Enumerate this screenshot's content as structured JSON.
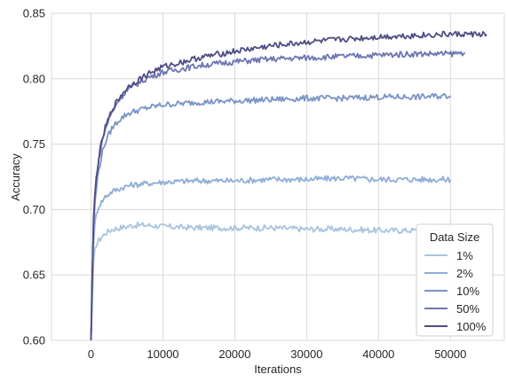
{
  "chart_data": {
    "type": "line",
    "xlabel": "Iterations",
    "ylabel": "Accuracy",
    "xlim": [
      -5500,
      57500
    ],
    "ylim": [
      0.6,
      0.85
    ],
    "xticks": [
      0,
      10000,
      20000,
      30000,
      40000,
      50000
    ],
    "xtick_labels": [
      "0",
      "10000",
      "20000",
      "30000",
      "40000",
      "50000"
    ],
    "yticks": [
      0.6,
      0.65,
      0.7,
      0.75,
      0.8,
      0.85
    ],
    "ytick_labels": [
      "0.60",
      "0.65",
      "0.70",
      "0.75",
      "0.80",
      "0.85"
    ],
    "grid": true,
    "legend": {
      "title": "Data Size",
      "placement": "lower-right"
    },
    "series": [
      {
        "name": "1%",
        "color": "#a9c4de",
        "x": [
          0,
          300,
          600,
          1000,
          1500,
          2000,
          3000,
          4000,
          5000,
          6000,
          8000,
          10000,
          15000,
          20000,
          25000,
          30000,
          35000,
          40000,
          45000,
          50000
        ],
        "y": [
          0.6,
          0.655,
          0.672,
          0.676,
          0.679,
          0.682,
          0.685,
          0.686,
          0.687,
          0.688,
          0.688,
          0.687,
          0.686,
          0.686,
          0.686,
          0.685,
          0.685,
          0.684,
          0.684,
          0.684
        ]
      },
      {
        "name": "2%",
        "color": "#8fadd6",
        "x": [
          0,
          300,
          600,
          1000,
          1500,
          2000,
          3000,
          4000,
          5000,
          6000,
          8000,
          10000,
          15000,
          20000,
          25000,
          30000,
          35000,
          40000,
          45000,
          50000
        ],
        "y": [
          0.6,
          0.672,
          0.693,
          0.702,
          0.706,
          0.71,
          0.714,
          0.716,
          0.718,
          0.719,
          0.72,
          0.721,
          0.722,
          0.722,
          0.723,
          0.723,
          0.724,
          0.723,
          0.723,
          0.723
        ]
      },
      {
        "name": "10%",
        "color": "#7a94c6",
        "x": [
          0,
          300,
          600,
          1000,
          1500,
          2000,
          3000,
          4000,
          5000,
          6000,
          8000,
          10000,
          15000,
          20000,
          25000,
          30000,
          35000,
          40000,
          45000,
          50000
        ],
        "y": [
          0.6,
          0.68,
          0.71,
          0.728,
          0.742,
          0.752,
          0.763,
          0.769,
          0.773,
          0.775,
          0.778,
          0.78,
          0.782,
          0.783,
          0.784,
          0.785,
          0.785,
          0.786,
          0.786,
          0.787
        ]
      },
      {
        "name": "50%",
        "color": "#6d76b2",
        "x": [
          0,
          300,
          600,
          1000,
          1500,
          2000,
          3000,
          4000,
          5000,
          6000,
          8000,
          10000,
          15000,
          20000,
          25000,
          30000,
          35000,
          40000,
          45000,
          50000,
          52000
        ],
        "y": [
          0.6,
          0.685,
          0.716,
          0.735,
          0.751,
          0.762,
          0.776,
          0.785,
          0.791,
          0.795,
          0.801,
          0.805,
          0.81,
          0.813,
          0.815,
          0.816,
          0.817,
          0.818,
          0.819,
          0.819,
          0.82
        ]
      },
      {
        "name": "100%",
        "color": "#4f4d85",
        "x": [
          0,
          300,
          600,
          1000,
          1500,
          2000,
          3000,
          4000,
          5000,
          6000,
          8000,
          10000,
          15000,
          20000,
          25000,
          30000,
          35000,
          40000,
          45000,
          50000,
          55000
        ],
        "y": [
          0.6,
          0.686,
          0.718,
          0.737,
          0.752,
          0.763,
          0.777,
          0.786,
          0.793,
          0.797,
          0.804,
          0.809,
          0.816,
          0.821,
          0.825,
          0.828,
          0.83,
          0.832,
          0.833,
          0.834,
          0.834
        ]
      }
    ]
  }
}
